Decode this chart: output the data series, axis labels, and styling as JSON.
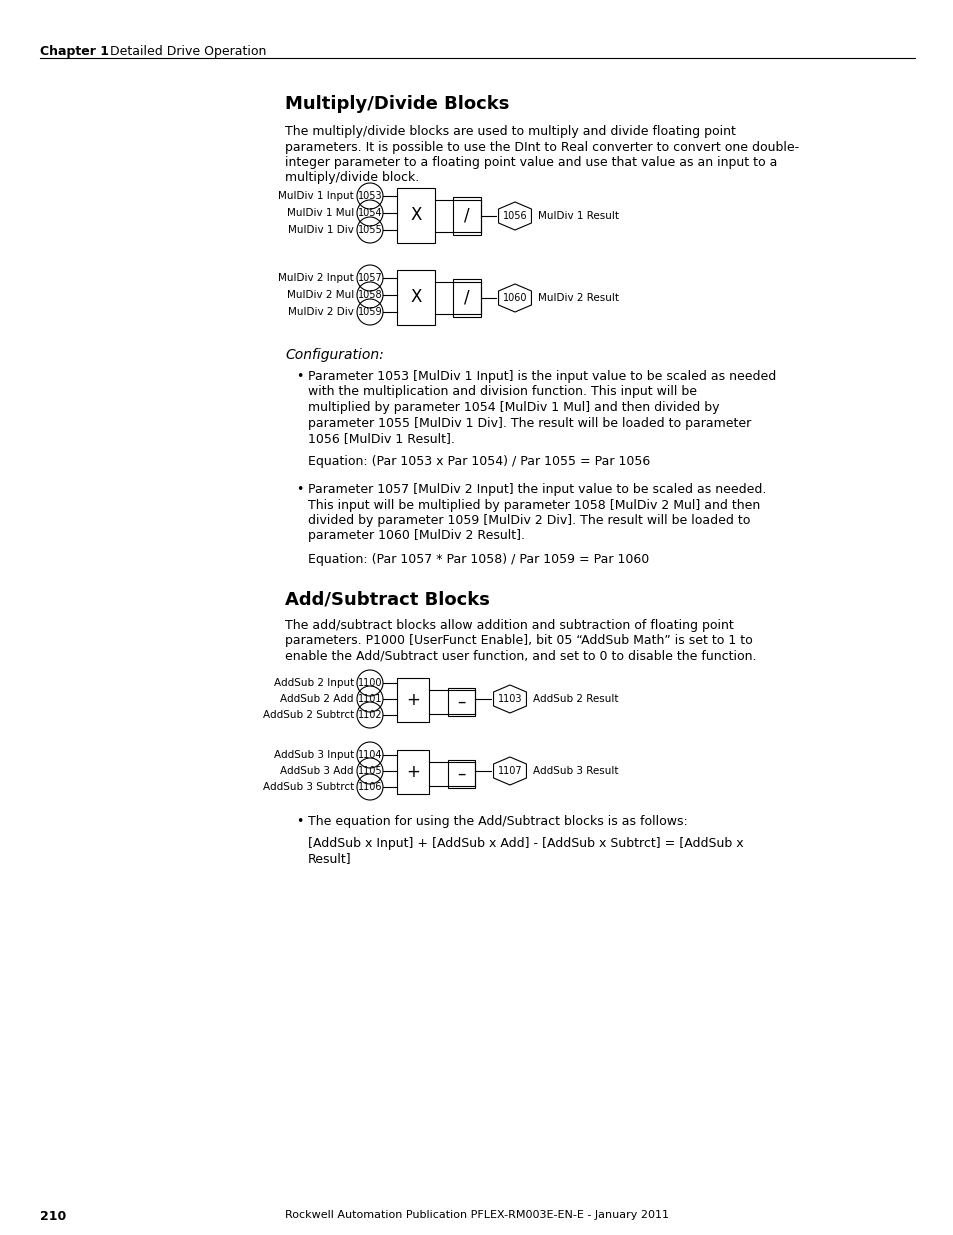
{
  "page_number": "210",
  "footer_text": "Rockwell Automation Publication PFLEX-RM003E-EN-E - January 2011",
  "header_chapter": "Chapter 1",
  "header_section": "Detailed Drive Operation",
  "section1_title": "Multiply/Divide Blocks",
  "section1_intro_lines": [
    "The multiply/divide blocks are used to multiply and divide floating point",
    "parameters. It is possible to use the DInt to Real converter to convert one double-",
    "integer parameter to a floating point value and use that value as an input to a",
    "multiply/divide block."
  ],
  "muldiv1_labels": [
    "MulDiv 1 Input",
    "MulDiv 1 Mul",
    "MulDiv 1 Div"
  ],
  "muldiv1_params": [
    "1053",
    "1054",
    "1055"
  ],
  "muldiv1_result_label": "MulDiv 1 Result",
  "muldiv1_result_param": "1056",
  "muldiv2_labels": [
    "MulDiv 2 Input",
    "MulDiv 2 Mul",
    "MulDiv 2 Div"
  ],
  "muldiv2_params": [
    "1057",
    "1058",
    "1059"
  ],
  "muldiv2_result_label": "MulDiv 2 Result",
  "muldiv2_result_param": "1060",
  "config_label": "Configuration:",
  "bullet1_lines": [
    "Parameter 1053 [MulDiv 1 Input] is the input value to be scaled as needed",
    "with the multiplication and division function. This input will be",
    "multiplied by parameter 1054 [MulDiv 1 Mul] and then divided by",
    "parameter 1055 [MulDiv 1 Div]. The result will be loaded to parameter",
    "1056 [MulDiv 1 Result]."
  ],
  "equation1": "Equation: (Par 1053 x Par 1054) / Par 1055 = Par 1056",
  "bullet2_lines": [
    "Parameter 1057 [MulDiv 2 Input] the input value to be scaled as needed.",
    "This input will be multiplied by parameter 1058 [MulDiv 2 Mul] and then",
    "divided by parameter 1059 [MulDiv 2 Div]. The result will be loaded to",
    "parameter 1060 [MulDiv 2 Result]."
  ],
  "equation2": "Equation: (Par 1057 * Par 1058) / Par 1059 = Par 1060",
  "section2_title": "Add/Subtract Blocks",
  "section2_intro_lines": [
    "The add/subtract blocks allow addition and subtraction of floating point",
    "parameters. P1000 [UserFunct Enable], bit 05 “AddSub Math” is set to 1 to",
    "enable the Add/Subtract user function, and set to 0 to disable the function."
  ],
  "addsub2_labels": [
    "AddSub 2 Input",
    "AddSub 2 Add",
    "AddSub 2 Subtrct"
  ],
  "addsub2_params": [
    "1100",
    "1101",
    "1102"
  ],
  "addsub2_result_label": "AddSub 2 Result",
  "addsub2_result_param": "1103",
  "addsub3_labels": [
    "AddSub 3 Input",
    "AddSub 3 Add",
    "AddSub 3 Subtrct"
  ],
  "addsub3_params": [
    "1104",
    "1105",
    "1106"
  ],
  "addsub3_result_label": "AddSub 3 Result",
  "addsub3_result_param": "1107",
  "bullet3_text": "The equation for using the Add/Subtract blocks is as follows:",
  "equation3_lines": [
    "[AddSub x Input] + [AddSub x Add] - [AddSub x Subtrct] = [AddSub x",
    "Result]"
  ],
  "bg_color": "#ffffff",
  "text_color": "#000000"
}
